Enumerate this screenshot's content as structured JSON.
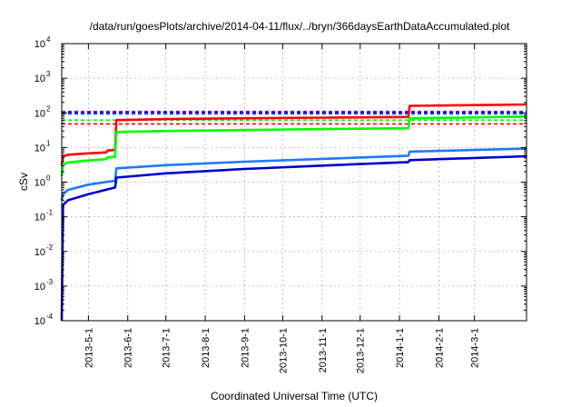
{
  "chart_data": {
    "type": "line",
    "title": "/data/run/goesPlots/archive/2014-04-11/flux/../bryn/366daysEarthDataAccumulated.plot",
    "xlabel": "Coordinated Universal Time (UTC)",
    "ylabel": "cSv",
    "y_scale": "log",
    "ylim": [
      0.0001,
      10000
    ],
    "xlim": [
      "2013-04-10",
      "2014-04-11"
    ],
    "grid": true,
    "legend": "none",
    "y_ticks": [
      {
        "value": 0.0001,
        "base": "10",
        "exp": "-4"
      },
      {
        "value": 0.001,
        "base": "10",
        "exp": "-3"
      },
      {
        "value": 0.01,
        "base": "10",
        "exp": "-2"
      },
      {
        "value": 0.1,
        "base": "10",
        "exp": "-1"
      },
      {
        "value": 1,
        "base": "10",
        "exp": "0"
      },
      {
        "value": 10,
        "base": "10",
        "exp": "1"
      },
      {
        "value": 100,
        "base": "10",
        "exp": "2"
      },
      {
        "value": 1000,
        "base": "10",
        "exp": "3"
      },
      {
        "value": 10000,
        "base": "10",
        "exp": "4"
      }
    ],
    "x_ticks": [
      {
        "date": "2013-05-01",
        "label": "2013-5-1"
      },
      {
        "date": "2013-06-01",
        "label": "2013-6-1"
      },
      {
        "date": "2013-07-01",
        "label": "2013-7-1"
      },
      {
        "date": "2013-08-01",
        "label": "2013-8-1"
      },
      {
        "date": "2013-09-01",
        "label": "2013-9-1"
      },
      {
        "date": "2013-10-01",
        "label": "2013-10-1"
      },
      {
        "date": "2013-11-01",
        "label": "2013-11-1"
      },
      {
        "date": "2013-12-01",
        "label": "2013-12-1"
      },
      {
        "date": "2014-01-01",
        "label": "2014-1-1"
      },
      {
        "date": "2014-02-01",
        "label": "2014-2-1"
      },
      {
        "date": "2014-03-01",
        "label": "2014-3-1"
      }
    ],
    "series": [
      {
        "color": "#ff0000",
        "points": [
          [
            "2013-04-10",
            3
          ],
          [
            "2013-04-11",
            5.5
          ],
          [
            "2013-04-15",
            6.2
          ],
          [
            "2013-05-01",
            6.8
          ],
          [
            "2013-05-15",
            7.2
          ],
          [
            "2013-05-16",
            8.2
          ],
          [
            "2013-05-22",
            8.5
          ],
          [
            "2013-05-23",
            62
          ],
          [
            "2013-07-01",
            66
          ],
          [
            "2013-09-01",
            70
          ],
          [
            "2013-11-01",
            73
          ],
          [
            "2014-01-08",
            76
          ],
          [
            "2014-01-09",
            160
          ],
          [
            "2014-03-01",
            168
          ],
          [
            "2014-04-11",
            175
          ]
        ]
      },
      {
        "color": "#00ff00",
        "points": [
          [
            "2013-04-10",
            1.5
          ],
          [
            "2013-04-11",
            3.2
          ],
          [
            "2013-04-15",
            3.7
          ],
          [
            "2013-05-01",
            4.2
          ],
          [
            "2013-05-15",
            4.6
          ],
          [
            "2013-05-16",
            5.2
          ],
          [
            "2013-05-22",
            5.4
          ],
          [
            "2013-05-23",
            28
          ],
          [
            "2013-07-01",
            30
          ],
          [
            "2013-09-01",
            32
          ],
          [
            "2013-11-01",
            34
          ],
          [
            "2014-01-08",
            36
          ],
          [
            "2014-01-09",
            70
          ],
          [
            "2014-03-01",
            74
          ],
          [
            "2014-04-11",
            78
          ]
        ]
      },
      {
        "color": "#1e78ff",
        "points": [
          [
            "2013-04-10",
            0.3
          ],
          [
            "2013-04-11",
            0.45
          ],
          [
            "2013-04-15",
            0.6
          ],
          [
            "2013-05-01",
            0.85
          ],
          [
            "2013-05-22",
            1.1
          ],
          [
            "2013-05-23",
            2.5
          ],
          [
            "2013-07-01",
            3.1
          ],
          [
            "2013-09-01",
            3.9
          ],
          [
            "2013-11-01",
            4.7
          ],
          [
            "2014-01-08",
            5.8
          ],
          [
            "2014-01-09",
            7.6
          ],
          [
            "2014-03-01",
            8.5
          ],
          [
            "2014-04-11",
            9.3
          ]
        ]
      },
      {
        "color": "#0000cc",
        "points": [
          [
            "2013-04-10",
            0.0001
          ],
          [
            "2013-04-11",
            0.22
          ],
          [
            "2013-04-15",
            0.3
          ],
          [
            "2013-05-01",
            0.45
          ],
          [
            "2013-05-22",
            0.7
          ],
          [
            "2013-05-23",
            1.35
          ],
          [
            "2013-07-01",
            1.8
          ],
          [
            "2013-09-01",
            2.4
          ],
          [
            "2013-11-01",
            3.0
          ],
          [
            "2014-01-08",
            3.8
          ],
          [
            "2014-01-09",
            4.3
          ],
          [
            "2014-03-01",
            5.0
          ],
          [
            "2014-04-11",
            5.6
          ]
        ]
      }
    ],
    "threshold_lines": [
      {
        "color": "#8800cc",
        "value": 110
      },
      {
        "color": "#0000cc",
        "value": 100
      },
      {
        "color": "#1e78ff",
        "value": 92
      },
      {
        "color": "#00ff00",
        "value": 62
      },
      {
        "color": "#ff0000",
        "value": 48
      }
    ]
  }
}
